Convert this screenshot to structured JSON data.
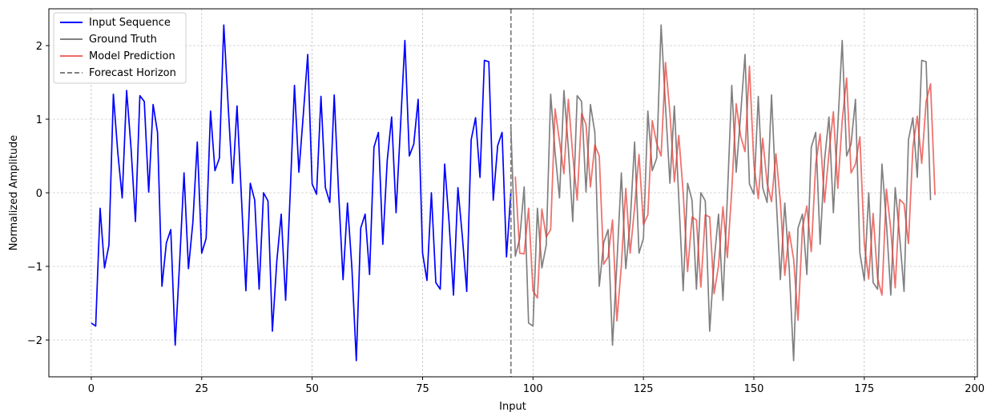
{
  "chart_data": {
    "type": "line",
    "title": "",
    "xlabel": "Input",
    "ylabel": "Normalized Amplitude",
    "xlim": [
      -9.6,
      200.6
    ],
    "ylim": [
      -2.5,
      2.5
    ],
    "xticks": [
      0,
      25,
      50,
      75,
      100,
      125,
      150,
      175,
      200
    ],
    "yticks": [
      -2,
      -1,
      0,
      1,
      2
    ],
    "grid": true,
    "legend_position": "top-left",
    "forecast_horizon_x": 95,
    "series": [
      {
        "name": "Input Sequence",
        "color": "#0000ff",
        "x_start": 0,
        "values": [
          -1.77,
          -1.81,
          -0.21,
          -1.02,
          -0.71,
          1.34,
          0.55,
          -0.07,
          1.39,
          0.61,
          -0.39,
          1.32,
          1.24,
          0.01,
          1.2,
          0.82,
          -1.27,
          -0.68,
          -0.5,
          -2.07,
          -0.95,
          0.27,
          -1.03,
          -0.4,
          0.69,
          -0.82,
          -0.62,
          1.11,
          0.3,
          0.47,
          2.28,
          1.17,
          0.13,
          1.18,
          -0.07,
          -1.33,
          0.13,
          -0.1,
          -1.31,
          0.0,
          -0.11,
          -1.88,
          -0.93,
          -0.29,
          -1.46,
          -0.06,
          1.46,
          0.28,
          1.06,
          1.88,
          0.12,
          -0.02,
          1.31,
          0.07,
          -0.13,
          1.33,
          -0.01,
          -1.18,
          -0.14,
          -1.02,
          -2.28,
          -0.48,
          -0.29,
          -1.11,
          0.62,
          0.82,
          -0.7,
          0.44,
          1.03,
          -0.27,
          0.9,
          2.07,
          0.5,
          0.66,
          1.27,
          -0.82,
          -1.19,
          0.0,
          -1.22,
          -1.31,
          0.39,
          -0.4,
          -1.39,
          0.07,
          -0.59,
          -1.34,
          0.72,
          1.02,
          0.21,
          1.8,
          1.78,
          -0.1,
          0.64,
          0.82,
          -0.87,
          0.01
        ]
      },
      {
        "name": "Ground Truth",
        "color": "#808080",
        "x_start": 95,
        "values": [
          0.88,
          -0.86,
          -0.62,
          0.08,
          -1.77,
          -1.81,
          -0.21,
          -1.02,
          -0.71,
          1.34,
          0.55,
          -0.07,
          1.39,
          0.61,
          -0.39,
          1.32,
          1.24,
          0.01,
          1.2,
          0.82,
          -1.27,
          -0.68,
          -0.5,
          -2.07,
          -0.95,
          0.27,
          -1.03,
          -0.4,
          0.69,
          -0.82,
          -0.62,
          1.11,
          0.3,
          0.47,
          2.28,
          1.17,
          0.13,
          1.18,
          -0.07,
          -1.33,
          0.13,
          -0.1,
          -1.31,
          0.0,
          -0.11,
          -1.88,
          -0.93,
          -0.29,
          -1.46,
          -0.06,
          1.46,
          0.28,
          1.06,
          1.88,
          0.12,
          -0.02,
          1.31,
          0.07,
          -0.13,
          1.33,
          -0.01,
          -1.18,
          -0.14,
          -1.02,
          -2.28,
          -0.48,
          -0.29,
          -1.11,
          0.62,
          0.82,
          -0.7,
          0.44,
          1.03,
          -0.27,
          0.9,
          2.07,
          0.5,
          0.66,
          1.27,
          -0.82,
          -1.19,
          0.0,
          -1.22,
          -1.31,
          0.39,
          -0.4,
          -1.39,
          0.07,
          -0.59,
          -1.34,
          0.72,
          1.02,
          0.21,
          1.8,
          1.78,
          -0.1
        ]
      },
      {
        "name": "Model Prediction",
        "color": "#e8362f",
        "x_start": 96,
        "values": [
          0.22,
          -0.82,
          -0.83,
          -0.21,
          -1.33,
          -1.43,
          -0.22,
          -0.6,
          -0.5,
          1.14,
          0.7,
          0.26,
          1.27,
          0.51,
          -0.1,
          1.08,
          0.93,
          0.08,
          0.65,
          0.5,
          -0.97,
          -0.87,
          -0.37,
          -1.74,
          -0.99,
          0.06,
          -0.82,
          -0.2,
          0.52,
          -0.43,
          -0.3,
          0.98,
          0.67,
          0.5,
          1.77,
          1.08,
          0.15,
          0.78,
          0.0,
          -1.07,
          -0.33,
          -0.37,
          -1.28,
          -0.3,
          -0.33,
          -1.37,
          -0.99,
          -0.19,
          -0.88,
          0.03,
          1.21,
          0.77,
          0.56,
          1.72,
          0.39,
          -0.08,
          0.74,
          0.13,
          -0.12,
          0.53,
          -0.12,
          -1.12,
          -0.53,
          -0.9,
          -1.73,
          -0.48,
          -0.18,
          -0.8,
          0.39,
          0.8,
          -0.13,
          0.54,
          1.1,
          0.06,
          0.98,
          1.56,
          0.27,
          0.39,
          0.76,
          -0.69,
          -1.17,
          -0.28,
          -1.16,
          -1.39,
          0.05,
          -0.5,
          -1.29,
          -0.09,
          -0.15,
          -0.69,
          0.62,
          1.04,
          0.4,
          1.24,
          1.48,
          -0.03
        ]
      }
    ],
    "forecast_line": {
      "name": "Forecast Horizon",
      "color": "#808080"
    }
  }
}
